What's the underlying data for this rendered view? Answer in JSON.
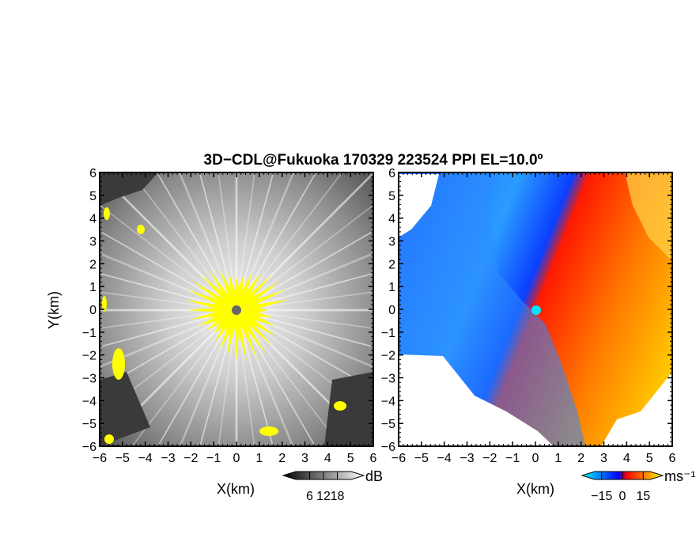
{
  "figure": {
    "title": "3D−CDL@Fukuoka 170329 223524 PPI EL=10.0º"
  },
  "chart_data": [
    {
      "type": "heatmap",
      "panel": "reflectivity",
      "xlabel": "X(km)",
      "ylabel": "Y(km)",
      "xlim": [
        -6,
        6
      ],
      "ylim": [
        -6,
        6
      ],
      "x_ticks": [
        -6,
        -5,
        -4,
        -3,
        -2,
        -1,
        0,
        1,
        2,
        3,
        4,
        5,
        6
      ],
      "y_ticks": [
        -6,
        -5,
        -4,
        -3,
        -2,
        -1,
        0,
        1,
        2,
        3,
        4,
        5,
        6
      ],
      "colorbar": {
        "unit": "dB",
        "ticks": [
          6,
          12,
          18
        ],
        "range": [
          0,
          24
        ],
        "colors": [
          "#000000",
          "#ffffff"
        ]
      },
      "highlight_color": "#ffff00",
      "center_marker_color": "#666666"
    },
    {
      "type": "heatmap",
      "panel": "doppler_velocity",
      "xlabel": "X(km)",
      "xlim": [
        -6,
        6
      ],
      "ylim": [
        -6,
        6
      ],
      "x_ticks": [
        -6,
        -5,
        -4,
        -3,
        -2,
        -1,
        0,
        1,
        2,
        3,
        4,
        5,
        6
      ],
      "y_ticks": [
        -6,
        -5,
        -4,
        -3,
        -2,
        -1,
        0,
        1,
        2,
        3,
        4,
        5,
        6
      ],
      "colorbar": {
        "unit": "ms⁻¹",
        "ticks": [
          -15,
          0,
          15
        ],
        "range": [
          -20,
          20
        ],
        "colors": [
          "#00ffff",
          "#0000ff",
          "#ff0000",
          "#ffff00"
        ]
      },
      "center_marker_color": "#00e5ff"
    }
  ]
}
